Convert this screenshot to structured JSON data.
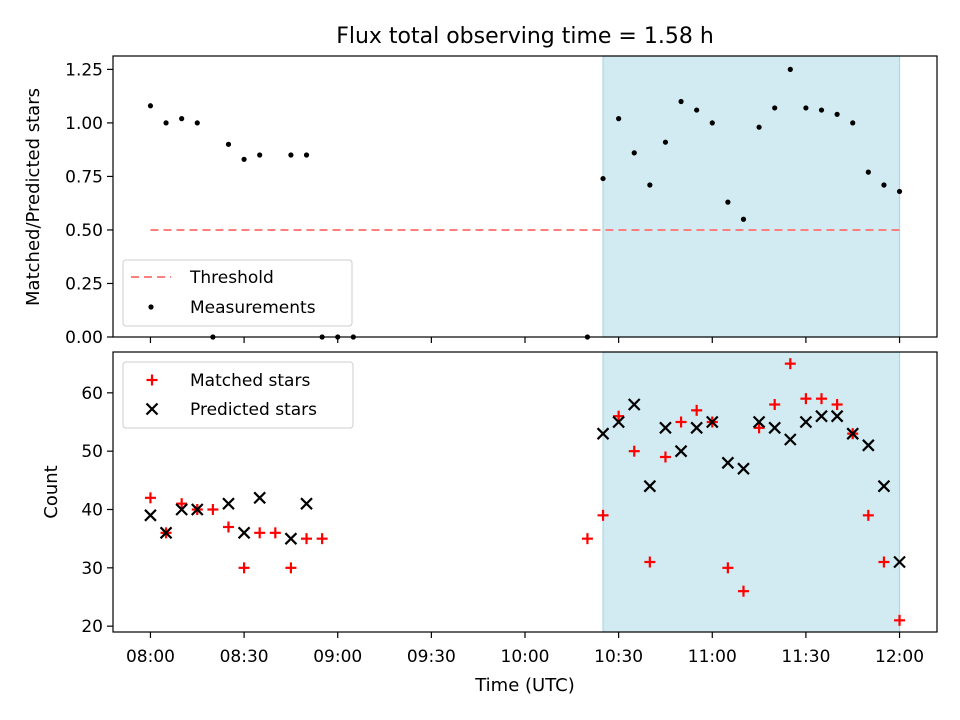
{
  "title": "Flux total observing time = 1.58 h",
  "colors": {
    "shade": "#add8e6",
    "threshold": "#ff7f7f",
    "measurements": "#000000",
    "matched": "#ff0000",
    "predicted": "#000000"
  },
  "chart_data": [
    {
      "type": "scatter",
      "title": "Flux total observing time = 1.58 h",
      "xlabel": "",
      "ylabel": "Matched/Predicted stars",
      "xlim": [
        "07:48",
        "12:12"
      ],
      "ylim": [
        0,
        1.3125
      ],
      "yticks": [
        "0.00",
        "0.25",
        "0.50",
        "0.75",
        "1.00",
        "1.25"
      ],
      "shaded_interval": [
        "10:25",
        "12:00"
      ],
      "threshold": {
        "name": "Threshold",
        "value": 0.5,
        "x_range": [
          "08:00",
          "12:00"
        ]
      },
      "legend": [
        "Threshold",
        "Measurements"
      ],
      "legend_position": "lower-left",
      "series": [
        {
          "name": "Measurements",
          "x": [
            "08:00",
            "08:05",
            "08:10",
            "08:15",
            "08:20",
            "08:25",
            "08:30",
            "08:35",
            "08:45",
            "08:50",
            "08:55",
            "08:60",
            "09:05",
            "10:20",
            "10:25",
            "10:30",
            "10:35",
            "10:40",
            "10:45",
            "10:50",
            "10:55",
            "11:00",
            "11:05",
            "11:10",
            "11:15",
            "11:20",
            "11:25",
            "11:30",
            "11:35",
            "11:40",
            "11:45",
            "11:50",
            "11:55",
            "12:00"
          ],
          "values": [
            1.08,
            1.0,
            1.02,
            1.0,
            0.0,
            0.9,
            0.83,
            0.85,
            0.85,
            0.85,
            0.0,
            0.0,
            0.0,
            0.0,
            0.74,
            1.02,
            0.86,
            0.71,
            0.91,
            1.1,
            1.06,
            1.0,
            0.63,
            0.55,
            0.98,
            1.07,
            1.25,
            1.07,
            1.06,
            1.04,
            1.0,
            0.77,
            0.71,
            0.68
          ]
        }
      ]
    },
    {
      "type": "scatter",
      "xlabel": "Time (UTC)",
      "ylabel": "Count",
      "xlim": [
        "07:48",
        "12:12"
      ],
      "ylim": [
        19,
        67
      ],
      "xticks": [
        "08:00",
        "08:30",
        "09:00",
        "09:30",
        "10:00",
        "10:30",
        "11:00",
        "11:30",
        "12:00"
      ],
      "yticks": [
        "20",
        "30",
        "40",
        "50",
        "60"
      ],
      "shaded_interval": [
        "10:25",
        "12:00"
      ],
      "legend": [
        "Matched stars",
        "Predicted stars"
      ],
      "legend_position": "upper-left",
      "series": [
        {
          "name": "Matched stars",
          "x": [
            "08:00",
            "08:05",
            "08:10",
            "08:15",
            "08:20",
            "08:25",
            "08:30",
            "08:35",
            "08:40",
            "08:45",
            "08:50",
            "08:55",
            "10:20",
            "10:25",
            "10:30",
            "10:35",
            "10:40",
            "10:45",
            "10:50",
            "10:55",
            "11:00",
            "11:05",
            "11:10",
            "11:15",
            "11:20",
            "11:25",
            "11:30",
            "11:35",
            "11:40",
            "11:45",
            "11:50",
            "11:55",
            "12:00"
          ],
          "values": [
            42,
            36,
            41,
            40,
            40,
            37,
            30,
            36,
            36,
            30,
            35,
            35,
            35,
            39,
            56,
            50,
            31,
            49,
            55,
            57,
            55,
            30,
            26,
            54,
            58,
            65,
            59,
            59,
            58,
            53,
            39,
            31,
            21
          ]
        },
        {
          "name": "Predicted stars",
          "x": [
            "08:00",
            "08:05",
            "08:10",
            "08:15",
            "08:25",
            "08:30",
            "08:35",
            "08:45",
            "08:50",
            "10:25",
            "10:30",
            "10:35",
            "10:40",
            "10:45",
            "10:50",
            "10:55",
            "11:00",
            "11:05",
            "11:10",
            "11:15",
            "11:20",
            "11:25",
            "11:30",
            "11:35",
            "11:40",
            "11:45",
            "11:50",
            "11:55",
            "12:00"
          ],
          "values": [
            39,
            36,
            40,
            40,
            41,
            36,
            42,
            35,
            41,
            53,
            55,
            58,
            44,
            54,
            50,
            54,
            55,
            48,
            47,
            55,
            54,
            52,
            55,
            56,
            56,
            53,
            51,
            44,
            31
          ]
        }
      ]
    }
  ]
}
